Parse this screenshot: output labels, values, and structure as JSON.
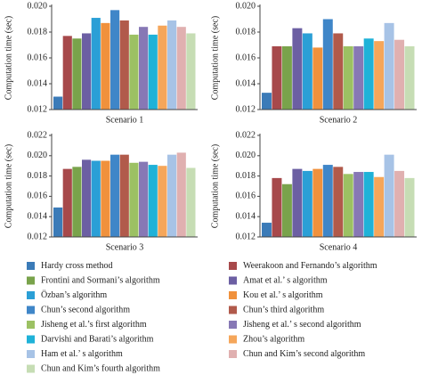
{
  "chart_data": {
    "type": "bar",
    "ylabel": "Computation time (sec)",
    "panels": [
      {
        "xlabel": "Scenario 1",
        "ylim": [
          0.012,
          0.02
        ],
        "yticks": [
          0.012,
          0.014,
          0.016,
          0.018,
          {
            "value": 0.02,
            "label": "0.020"
          }
        ]
      },
      {
        "xlabel": "Scenario 2",
        "ylim": [
          0.012,
          0.02
        ],
        "yticks": [
          0.012,
          0.014,
          0.016,
          0.018,
          {
            "value": 0.02,
            "label": "0.020"
          }
        ]
      },
      {
        "xlabel": "Scenario 3",
        "ylim": [
          0.012,
          0.022
        ],
        "yticks": [
          0.012,
          0.014,
          0.016,
          0.018,
          {
            "value": 0.02,
            "label": "0.020"
          },
          0.022
        ]
      },
      {
        "xlabel": "Scenario 4",
        "ylim": [
          0.012,
          0.022
        ],
        "yticks": [
          0.012,
          0.014,
          0.016,
          0.018,
          {
            "value": 0.02,
            "label": "0.020"
          },
          0.022
        ]
      }
    ],
    "series": [
      {
        "name": "Hardy cross method",
        "color": "#3b7bb8",
        "values": [
          0.013,
          0.0133,
          0.0149,
          0.0134
        ]
      },
      {
        "name": "Weerakoon and Fernando’s algorithm",
        "color": "#a7494b",
        "values": [
          0.0177,
          0.0169,
          0.0187,
          0.0178
        ]
      },
      {
        "name": "Frontini and Sormani’s algorithm",
        "color": "#79a34b",
        "values": [
          0.0175,
          0.0169,
          0.0189,
          0.0172
        ]
      },
      {
        "name": "Amat et al.’ s algorithm",
        "color": "#6c5fa3",
        "values": [
          0.0179,
          0.0183,
          0.0196,
          0.0187
        ]
      },
      {
        "name": "Özban’s algorithm",
        "color": "#2b9fd6",
        "values": [
          0.0191,
          0.0179,
          0.0195,
          0.0185
        ]
      },
      {
        "name": "Kou et al.’ s algorithm",
        "color": "#f0913c",
        "values": [
          0.0187,
          0.0168,
          0.0195,
          0.0187
        ]
      },
      {
        "name": "Chun’s second algorithm",
        "color": "#3f86c8",
        "values": [
          0.0197,
          0.019,
          0.0201,
          0.0191
        ]
      },
      {
        "name": "Chun’s third algorithm",
        "color": "#b15a4b",
        "values": [
          0.0189,
          0.0179,
          0.0201,
          0.0189
        ]
      },
      {
        "name": "Jisheng et al.’s first algorithm",
        "color": "#9cc163",
        "values": [
          0.0178,
          0.0169,
          0.0193,
          0.0182
        ]
      },
      {
        "name": "Jisheng et al.’ s second algorithm",
        "color": "#8778b5",
        "values": [
          0.0184,
          0.0169,
          0.0194,
          0.0184
        ]
      },
      {
        "name": "Darvishi and Barati’s algorithm",
        "color": "#1fb2d8",
        "values": [
          0.0178,
          0.0175,
          0.0191,
          0.0184
        ]
      },
      {
        "name": "Zhou’s algorithm",
        "color": "#f5a65a",
        "values": [
          0.0185,
          0.0173,
          0.019,
          0.0179
        ]
      },
      {
        "name": "Ham et al.’ s algorithm",
        "color": "#a7c3e6",
        "values": [
          0.0189,
          0.0187,
          0.0201,
          0.0201
        ]
      },
      {
        "name": "Chun and Kim’s second algorithm",
        "color": "#e0b0b0",
        "values": [
          0.0184,
          0.0174,
          0.0203,
          0.0185
        ]
      },
      {
        "name": "Chun and Kim’s fourth algorithm",
        "color": "#c6ddb4",
        "values": [
          0.0179,
          0.0169,
          0.0188,
          0.0178
        ]
      }
    ]
  }
}
